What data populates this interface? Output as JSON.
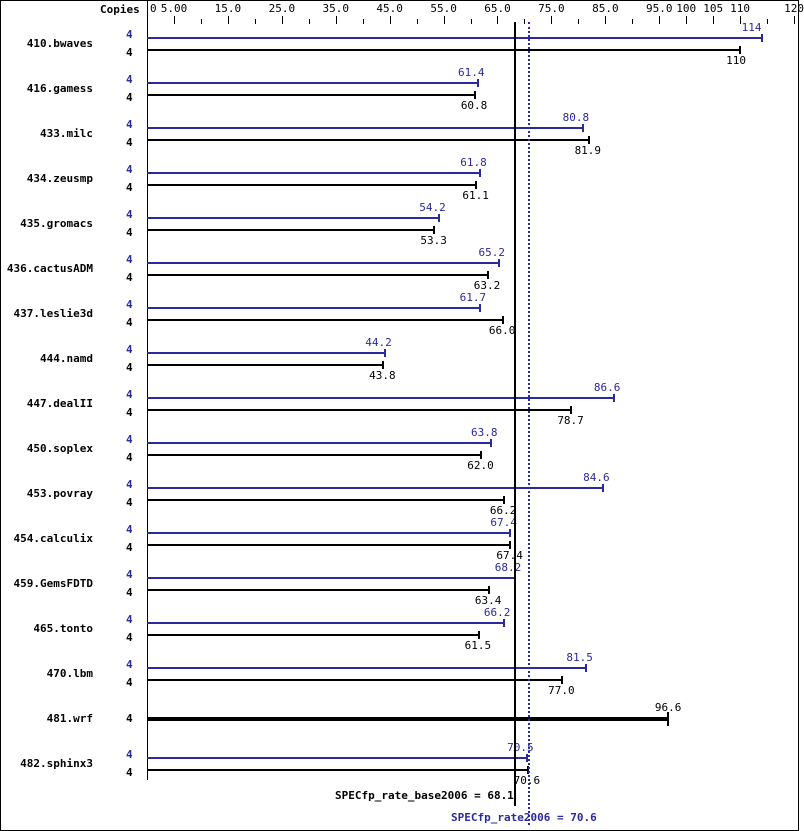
{
  "chart_data": {
    "type": "bar",
    "orientation": "horizontal",
    "title": "",
    "header_label": "Copies",
    "xlabel": "",
    "ylabel": "",
    "xlim": [
      0,
      120
    ],
    "x_tick_labels": [
      "0",
      "5.00",
      "15.0",
      "25.0",
      "35.0",
      "45.0",
      "55.0",
      "65.0",
      "75.0",
      "85.0",
      "95.0",
      "100",
      "105",
      "110",
      "120"
    ],
    "grid": false,
    "colors": {
      "peak": "#2a2aa0",
      "base": "#000000"
    },
    "categories": [
      "410.bwaves",
      "416.gamess",
      "433.milc",
      "434.zeusmp",
      "435.gromacs",
      "436.cactusADM",
      "437.leslie3d",
      "444.namd",
      "447.dealII",
      "450.soplex",
      "453.povray",
      "454.calculix",
      "459.GemsFDTD",
      "465.tonto",
      "470.lbm",
      "481.wrf",
      "482.sphinx3"
    ],
    "series": [
      {
        "name": "peak",
        "copies": [
          4,
          4,
          4,
          4,
          4,
          4,
          4,
          4,
          4,
          4,
          4,
          4,
          4,
          4,
          4,
          null,
          4
        ],
        "values": [
          114,
          61.4,
          80.8,
          61.8,
          54.2,
          65.2,
          61.7,
          44.2,
          86.6,
          63.8,
          84.6,
          67.4,
          68.2,
          66.2,
          81.5,
          null,
          70.5
        ]
      },
      {
        "name": "base",
        "copies": [
          4,
          4,
          4,
          4,
          4,
          4,
          4,
          4,
          4,
          4,
          4,
          4,
          4,
          4,
          4,
          4,
          4
        ],
        "values": [
          110,
          60.8,
          81.9,
          61.1,
          53.3,
          63.2,
          66.0,
          43.8,
          78.7,
          62.0,
          66.2,
          67.4,
          63.4,
          61.5,
          77.0,
          96.6,
          70.6
        ]
      }
    ],
    "reference_lines": [
      {
        "name": "SPECfp_rate_base2006",
        "value": 68.1,
        "label": "SPECfp_rate_base2006 = 68.1",
        "style": "solid",
        "color": "#000000"
      },
      {
        "name": "SPECfp_rate2006",
        "value": 70.6,
        "label": "SPECfp_rate2006 = 70.6",
        "style": "dotted",
        "color": "#2a2aa0"
      }
    ]
  }
}
